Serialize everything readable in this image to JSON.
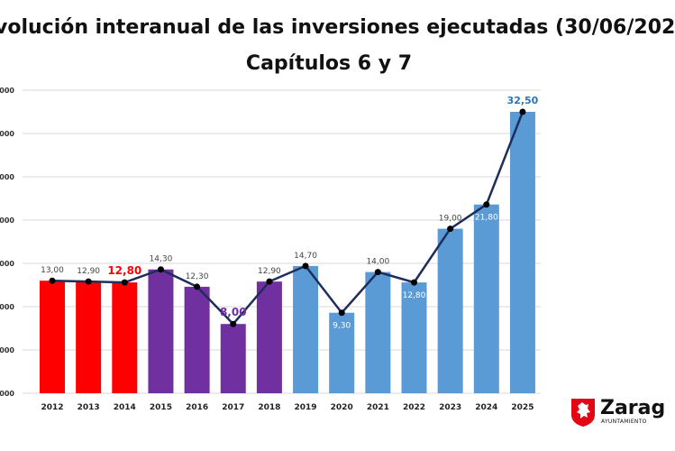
{
  "title_line1": "volución interanual de las inversiones ejecutadas (30/06/202",
  "title_line2": "Capítulos 6 y 7",
  "chart_data": {
    "type": "bar",
    "title": "volución interanual de las inversiones ejecutadas (30/06/202 — Capítulos 6 y 7",
    "categories": [
      "2012",
      "2013",
      "2014",
      "2015",
      "2016",
      "2017",
      "2018",
      "2019",
      "2020",
      "2021",
      "2022",
      "2023",
      "2024",
      "2025"
    ],
    "values": [
      13.0,
      12.9,
      12.8,
      14.3,
      12.3,
      8.0,
      12.9,
      14.7,
      9.3,
      14.0,
      12.8,
      19.0,
      21.8,
      32.5
    ],
    "labels": [
      "13,00",
      "12,90",
      "12,80",
      "14,30",
      "12,30",
      "8,00",
      "12,90",
      "14,70",
      "9,30",
      "14,00",
      "12,80",
      "19,00",
      "21,80",
      "32,50"
    ],
    "ytick_labels": [
      ",000",
      ",000",
      ",000",
      ",000",
      ",000",
      ",000",
      ",000",
      ",000"
    ],
    "ylim": [
      0,
      35
    ],
    "ystep": 5,
    "grid": true,
    "overlay_line": true,
    "colors": {
      "red": "#ff0000",
      "purple": "#7030a0",
      "blue": "#5b9bd5",
      "line": "#1f2d5c",
      "grid": "#d9d9d9"
    },
    "bar_colors": [
      "#ff0000",
      "#ff0000",
      "#ff0000",
      "#7030a0",
      "#7030a0",
      "#7030a0",
      "#7030a0",
      "#5b9bd5",
      "#5b9bd5",
      "#5b9bd5",
      "#5b9bd5",
      "#5b9bd5",
      "#5b9bd5",
      "#5b9bd5"
    ]
  },
  "logo": {
    "name": "Zarag",
    "sub": "AYUNTAMIENTO"
  }
}
